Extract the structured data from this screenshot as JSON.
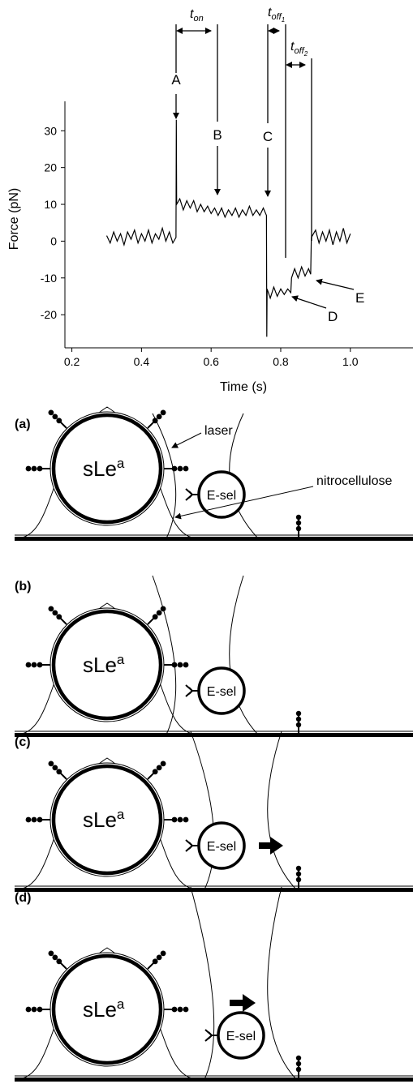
{
  "chart_data": {
    "type": "line",
    "ylabel": "Force (pN)",
    "xlabel": "Time (s)",
    "xlim": [
      0.18,
      1.18
    ],
    "ylim": [
      -29,
      38
    ],
    "xticks": [
      0.2,
      0.4,
      0.6,
      0.8,
      {
        "value": 1,
        "label": "1.0"
      }
    ],
    "yticks": [
      -20,
      -10,
      0,
      10,
      20,
      30
    ],
    "series": [
      {
        "color": "#000000",
        "x": [
          0.3,
          0.31,
          0.32,
          0.33,
          0.34,
          0.35,
          0.36,
          0.37,
          0.38,
          0.39,
          0.4,
          0.41,
          0.42,
          0.43,
          0.44,
          0.45,
          0.46,
          0.47,
          0.48,
          0.49,
          0.499,
          0.5,
          0.501,
          0.51,
          0.52,
          0.53,
          0.54,
          0.55,
          0.56,
          0.57,
          0.58,
          0.59,
          0.6,
          0.61,
          0.62,
          0.63,
          0.64,
          0.65,
          0.66,
          0.67,
          0.68,
          0.69,
          0.7,
          0.71,
          0.72,
          0.73,
          0.74,
          0.75,
          0.759,
          0.76,
          0.761,
          0.77,
          0.78,
          0.79,
          0.8,
          0.81,
          0.82,
          0.829,
          0.831,
          0.84,
          0.85,
          0.86,
          0.87,
          0.88,
          0.886,
          0.888,
          0.9,
          0.91,
          0.92,
          0.93,
          0.94,
          0.95,
          0.96,
          0.97,
          0.98,
          0.99,
          1.0
        ],
        "values": [
          1.5,
          -0.5,
          2.5,
          0,
          2,
          -1,
          2.5,
          0.5,
          3,
          -0.5,
          2,
          0,
          3,
          -0.5,
          2,
          0.5,
          3.5,
          0,
          2.5,
          -0.5,
          1,
          33,
          10,
          11.5,
          8.5,
          11,
          9,
          11,
          8,
          10,
          8,
          9.5,
          7.5,
          9,
          7,
          9,
          6.5,
          8.5,
          7,
          9,
          6.5,
          8.5,
          7,
          9.5,
          7,
          8.5,
          7,
          9,
          7,
          -26,
          -13,
          -15.5,
          -12.5,
          -15,
          -13,
          -14.5,
          -13,
          -14,
          -10,
          -7.5,
          -10,
          -7,
          -9.5,
          -7.5,
          -9,
          1,
          3,
          -0.5,
          2.5,
          0,
          3,
          -1,
          2.5,
          0,
          3.5,
          -0.5,
          2
        ]
      }
    ],
    "annotations": {
      "A": "A",
      "B": "B",
      "C": "C",
      "D": "D",
      "E": "E",
      "t_on": {
        "main": "t",
        "sub": "on"
      },
      "t_off1": {
        "main": "t",
        "sub": "off",
        "subsub": "1"
      },
      "t_off2": {
        "main": "t",
        "sub": "off",
        "subsub": "2"
      }
    }
  },
  "diagram": {
    "laser": "laser",
    "nitrocellulose": "nitrocellulose",
    "panels": [
      {
        "label": "(a)",
        "bead": {
          "main": "sLe",
          "sup": "a"
        },
        "probe": "E-sel"
      },
      {
        "label": "(b)",
        "bead": {
          "main": "sLe",
          "sup": "a"
        },
        "probe": "E-sel"
      },
      {
        "label": "(c)",
        "bead": {
          "main": "sLe",
          "sup": "a"
        },
        "probe": "E-sel"
      },
      {
        "label": "(d)",
        "bead": {
          "main": "sLe",
          "sup": "a"
        },
        "probe": "E-sel"
      }
    ]
  }
}
